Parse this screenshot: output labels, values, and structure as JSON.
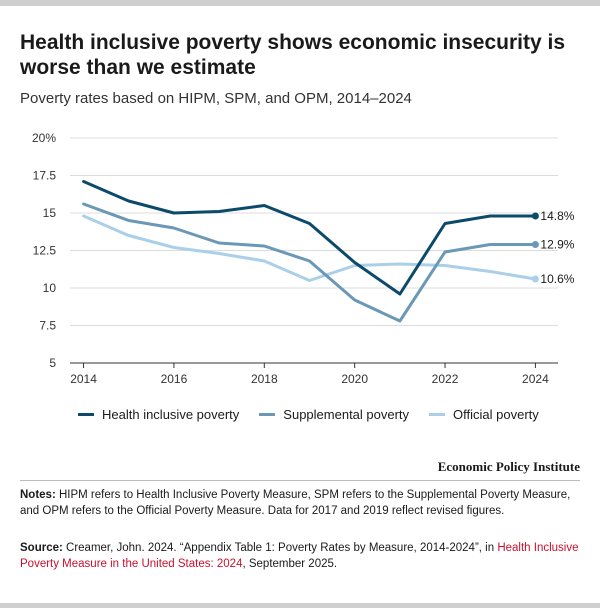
{
  "title": "Health inclusive poverty shows economic insecurity is worse than we estimate",
  "subtitle": "Poverty rates based on HIPM, SPM, and OPM, 2014–2024",
  "brand": "Economic Policy Institute",
  "notes": {
    "label": "Notes:",
    "text": " HIPM refers to Health Inclusive Poverty Measure, SPM refers to the Supplemental Poverty Measure, and OPM refers to the Official Poverty Measure. Data for 2017 and 2019 reflect revised figures."
  },
  "source": {
    "label": "Source:",
    "text": " Creamer, John. 2024. “Appendix Table 1: Poverty Rates by Measure, 2014-2024”, in ",
    "link": "Health Inclusive Poverty Measure in the United States: 2024",
    "tail": ", September 2025."
  },
  "colors": {
    "hipm": "#0b4a6b",
    "spm": "#6a98b6",
    "opm": "#a9d0e8",
    "grid": "#dcdcdc",
    "axis": "#333333"
  },
  "chart_data": {
    "type": "line",
    "title": "Poverty rates based on HIPM, SPM, and OPM, 2014–2024",
    "x": [
      2014,
      2015,
      2016,
      2017,
      2018,
      2019,
      2020,
      2021,
      2022,
      2023,
      2024
    ],
    "xticks": [
      2014,
      2016,
      2018,
      2020,
      2022,
      2024
    ],
    "xlim": [
      2013.7,
      2024.5
    ],
    "ylim": [
      5,
      20
    ],
    "yticks": [
      5,
      7.5,
      10,
      12.5,
      15,
      17.5,
      20
    ],
    "ytick_labels": [
      "5",
      "7.5",
      "10",
      "12.5",
      "15",
      "17.5",
      "20%"
    ],
    "xlabel": "",
    "ylabel": "",
    "grid": true,
    "legend": "bottom",
    "series": [
      {
        "key": "hipm",
        "name": "Health inclusive poverty",
        "values": [
          17.1,
          15.8,
          15.0,
          15.1,
          15.5,
          14.3,
          11.7,
          9.6,
          14.3,
          14.8,
          14.8
        ],
        "end_label": "14.8%"
      },
      {
        "key": "spm",
        "name": "Supplemental poverty",
        "values": [
          15.6,
          14.5,
          14.0,
          13.0,
          12.8,
          11.8,
          9.2,
          7.8,
          12.4,
          12.9,
          12.9
        ],
        "end_label": "12.9%"
      },
      {
        "key": "opm",
        "name": "Official poverty",
        "values": [
          14.8,
          13.5,
          12.7,
          12.3,
          11.8,
          10.5,
          11.5,
          11.6,
          11.5,
          11.1,
          10.6
        ],
        "end_label": "10.6%"
      }
    ]
  }
}
